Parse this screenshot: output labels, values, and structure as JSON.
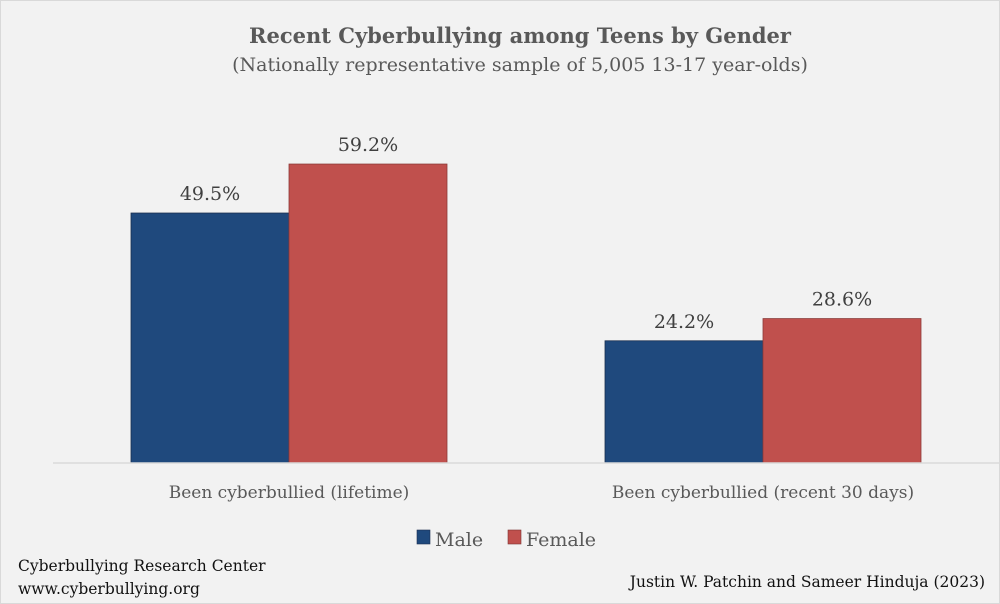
{
  "chart_data": {
    "type": "bar",
    "title": "Recent Cyberbullying among Teens by Gender",
    "subtitle": "(Nationally representative sample of 5,005 13-17 year-olds)",
    "categories": [
      "Been cyberbullied (lifetime)",
      "Been cyberbullied (recent 30 days)"
    ],
    "series": [
      {
        "name": "Male",
        "values": [
          49.5,
          24.2
        ],
        "labels": [
          "49.5%",
          "24.2%"
        ],
        "color": "#1f497d"
      },
      {
        "name": "Female",
        "values": [
          59.2,
          28.6
        ],
        "labels": [
          "59.2%",
          "28.6%"
        ],
        "color": "#c0504d"
      }
    ],
    "xlabel": "",
    "ylabel": "",
    "ylim": [
      0,
      70
    ],
    "grid": false,
    "legend": "bottom"
  },
  "footer": {
    "org": "Cyberbullying Research Center",
    "url": "www.cyberbullying.org",
    "credit": "Justin W. Patchin and Sameer Hinduja (2023)"
  }
}
